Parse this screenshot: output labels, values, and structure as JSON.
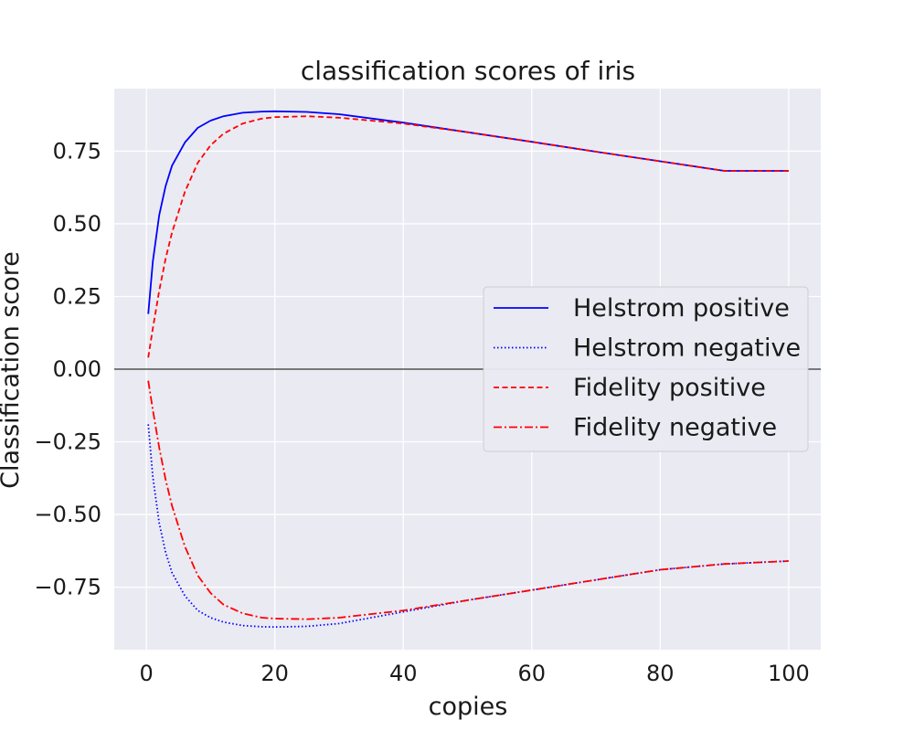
{
  "chart_data": {
    "type": "line",
    "title": "classification scores of iris",
    "xlabel": "copies",
    "ylabel": "Classification score",
    "xlim": [
      -5,
      105
    ],
    "ylim": [
      -0.965,
      0.965
    ],
    "xticks": [
      0,
      20,
      40,
      60,
      80,
      100
    ],
    "xtick_labels": [
      "0",
      "20",
      "40",
      "60",
      "80",
      "100"
    ],
    "yticks": [
      0.75,
      0.5,
      0.25,
      0.0,
      -0.25,
      -0.5,
      -0.75
    ],
    "ytick_labels": [
      "0.75",
      "0.50",
      "0.25",
      "0.00",
      "−0.25",
      "−0.50",
      "−0.75"
    ],
    "grid": true,
    "background": "#eaeaf2",
    "hline": 0.0,
    "legend_position": "center-right",
    "series": [
      {
        "name": "Helstrom positive",
        "color": "#0000ff",
        "dash": "solid",
        "x": [
          0.3,
          1,
          2,
          3,
          4,
          6,
          8,
          10,
          12,
          15,
          18,
          20,
          25,
          30,
          40,
          50,
          60,
          70,
          80,
          90,
          100
        ],
        "y": [
          0.19,
          0.37,
          0.53,
          0.63,
          0.7,
          0.78,
          0.83,
          0.855,
          0.87,
          0.882,
          0.886,
          0.887,
          0.885,
          0.877,
          0.848,
          0.815,
          0.782,
          0.748,
          0.715,
          0.682,
          0.682
        ]
      },
      {
        "name": "Helstrom negative",
        "color": "#0000ff",
        "dash": "dotted",
        "x": [
          0.3,
          1,
          2,
          3,
          4,
          6,
          8,
          10,
          12,
          15,
          18,
          20,
          25,
          30,
          40,
          50,
          60,
          70,
          80,
          90,
          100
        ],
        "y": [
          -0.19,
          -0.37,
          -0.53,
          -0.63,
          -0.7,
          -0.78,
          -0.83,
          -0.855,
          -0.87,
          -0.882,
          -0.886,
          -0.887,
          -0.885,
          -0.875,
          -0.835,
          -0.795,
          -0.76,
          -0.725,
          -0.69,
          -0.67,
          -0.66
        ]
      },
      {
        "name": "Fidelity positive",
        "color": "#ff0000",
        "dash": "dashed",
        "x": [
          0.3,
          1,
          2,
          3,
          4,
          6,
          8,
          10,
          12,
          15,
          18,
          20,
          25,
          30,
          40,
          50,
          60,
          70,
          80,
          90,
          100
        ],
        "y": [
          0.04,
          0.14,
          0.27,
          0.38,
          0.47,
          0.61,
          0.71,
          0.77,
          0.81,
          0.845,
          0.862,
          0.867,
          0.87,
          0.865,
          0.845,
          0.815,
          0.782,
          0.748,
          0.715,
          0.682,
          0.682
        ]
      },
      {
        "name": "Fidelity negative",
        "color": "#ff0000",
        "dash": "dashdot",
        "x": [
          0.3,
          1,
          2,
          3,
          4,
          6,
          8,
          10,
          12,
          15,
          18,
          20,
          25,
          30,
          40,
          50,
          60,
          70,
          80,
          90,
          100
        ],
        "y": [
          -0.04,
          -0.14,
          -0.27,
          -0.38,
          -0.47,
          -0.61,
          -0.71,
          -0.77,
          -0.81,
          -0.84,
          -0.855,
          -0.858,
          -0.86,
          -0.855,
          -0.83,
          -0.795,
          -0.76,
          -0.725,
          -0.69,
          -0.67,
          -0.66
        ]
      }
    ]
  }
}
